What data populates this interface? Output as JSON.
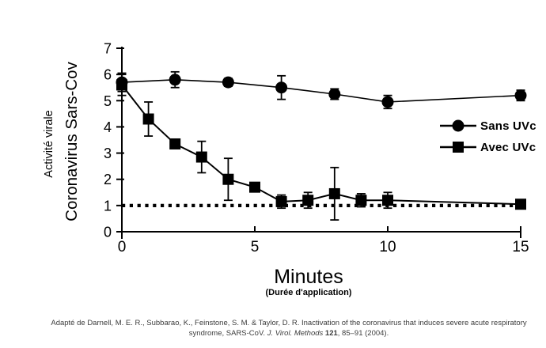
{
  "chart_data": {
    "type": "line",
    "title": "",
    "xlabel": "Minutes",
    "xlabel_sub": "(Durée d'application)",
    "ylabel_line1": "Activité virale",
    "ylabel_line2": "Coronavirus Sars-Cov",
    "xlim": [
      0,
      15
    ],
    "ylim": [
      0,
      7
    ],
    "x_ticks": [
      0,
      5,
      10,
      15
    ],
    "y_ticks": [
      0,
      1,
      2,
      3,
      4,
      5,
      6,
      7
    ],
    "grid": false,
    "legend_position": "right-middle",
    "reference_line": {
      "y": 1.0,
      "style": "dotted"
    },
    "series": [
      {
        "name": "Sans UVc",
        "marker": "circle",
        "x": [
          0,
          2,
          4,
          6,
          8,
          10,
          15
        ],
        "y": [
          5.7,
          5.8,
          5.7,
          5.5,
          5.25,
          4.95,
          5.2
        ],
        "yerr": [
          0.35,
          0.3,
          0.15,
          0.45,
          0.2,
          0.25,
          0.2
        ]
      },
      {
        "name": "Avec UVc",
        "marker": "square",
        "x": [
          0,
          1,
          2,
          3,
          4,
          5,
          6,
          7,
          8,
          9,
          10,
          15
        ],
        "y": [
          5.6,
          4.3,
          3.35,
          2.85,
          2.0,
          1.7,
          1.15,
          1.2,
          1.45,
          1.2,
          1.2,
          1.05
        ],
        "yerr": [
          0.4,
          0.65,
          0,
          0.6,
          0.8,
          0,
          0.25,
          0.3,
          1.0,
          0.25,
          0.3,
          0
        ]
      }
    ]
  },
  "citation": {
    "line1": "Adapté de Darnell, M. E. R., Subbarao, K., Feinstone, S. M. & Taylor, D. R. Inactivation of the coronavirus that induces severe acute respiratory",
    "line2_prefix": "syndrome, SARS-CoV. ",
    "line2_italic": "J. Virol. Methods ",
    "line2_bold": "121",
    "line2_suffix": ", 85–91 (2004)."
  },
  "colors": {
    "series": "#000000",
    "axis": "#1a1a1a",
    "text": "#000000",
    "citation_text": "#3c3c3c",
    "background": "#ffffff"
  }
}
